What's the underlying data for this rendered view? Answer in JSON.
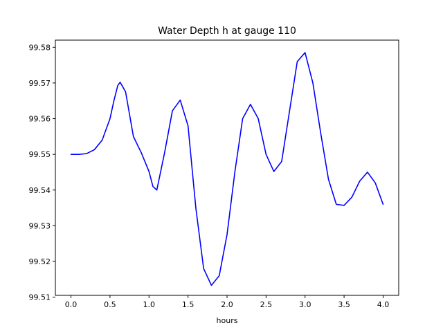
{
  "chart_data": {
    "type": "line",
    "title": "Water Depth h at gauge 110",
    "xlabel": "hours",
    "ylabel": "",
    "xlim": [
      -0.2,
      4.2
    ],
    "ylim": [
      99.5105,
      99.582
    ],
    "x_ticks": [
      "0.0",
      "0.5",
      "1.0",
      "1.5",
      "2.0",
      "2.5",
      "3.0",
      "3.5",
      "4.0"
    ],
    "y_ticks": [
      "99.51",
      "99.52",
      "99.53",
      "99.54",
      "99.55",
      "99.56",
      "99.57",
      "99.58"
    ],
    "grid": false,
    "series": [
      {
        "name": "",
        "color": "#0000ff",
        "x": [
          0.0,
          0.1,
          0.2,
          0.3,
          0.4,
          0.5,
          0.55,
          0.6,
          0.63,
          0.7,
          0.8,
          0.9,
          1.0,
          1.05,
          1.1,
          1.2,
          1.3,
          1.4,
          1.5,
          1.6,
          1.7,
          1.8,
          1.9,
          2.0,
          2.1,
          2.2,
          2.3,
          2.4,
          2.5,
          2.6,
          2.7,
          2.8,
          2.9,
          3.0,
          3.1,
          3.2,
          3.3,
          3.4,
          3.5,
          3.6,
          3.7,
          3.8,
          3.9,
          4.0
        ],
        "y": [
          99.55,
          99.55,
          99.5502,
          99.5513,
          99.554,
          99.56,
          99.565,
          99.5693,
          99.5702,
          99.5675,
          99.555,
          99.5505,
          99.5452,
          99.541,
          99.54,
          99.5505,
          99.5622,
          99.5652,
          99.558,
          99.535,
          99.518,
          99.5133,
          99.516,
          99.5275,
          99.545,
          99.56,
          99.564,
          99.56,
          99.55,
          99.5452,
          99.548,
          99.562,
          99.576,
          99.5785,
          99.57,
          99.556,
          99.543,
          99.536,
          99.5357,
          99.538,
          99.5425,
          99.545,
          99.542,
          99.536
        ]
      }
    ]
  }
}
